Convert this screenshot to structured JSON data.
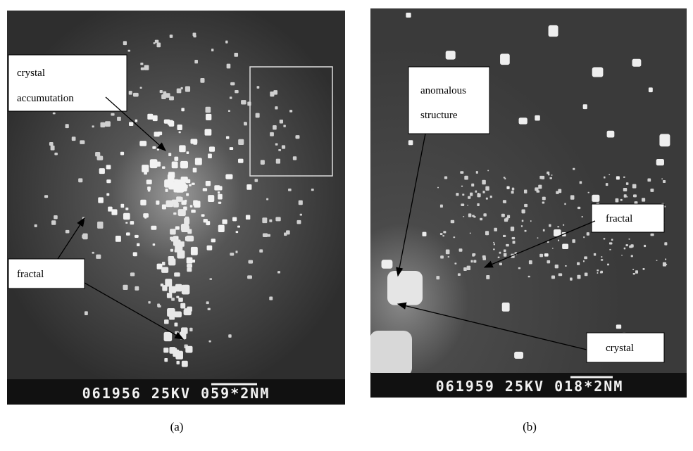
{
  "panels": [
    {
      "caption": "(a)",
      "footer": "061956 25KV 059*2NM",
      "annotations": [
        {
          "lines": [
            "crystal",
            "accumutation"
          ]
        },
        {
          "lines": [
            "fractal"
          ]
        }
      ]
    },
    {
      "caption": "(b)",
      "footer": "061959 25KV 018*2NM",
      "annotations": [
        {
          "lines": [
            "anomalous",
            "structure"
          ]
        },
        {
          "lines": [
            "fractal"
          ]
        },
        {
          "lines": [
            "crystal"
          ]
        }
      ]
    }
  ]
}
